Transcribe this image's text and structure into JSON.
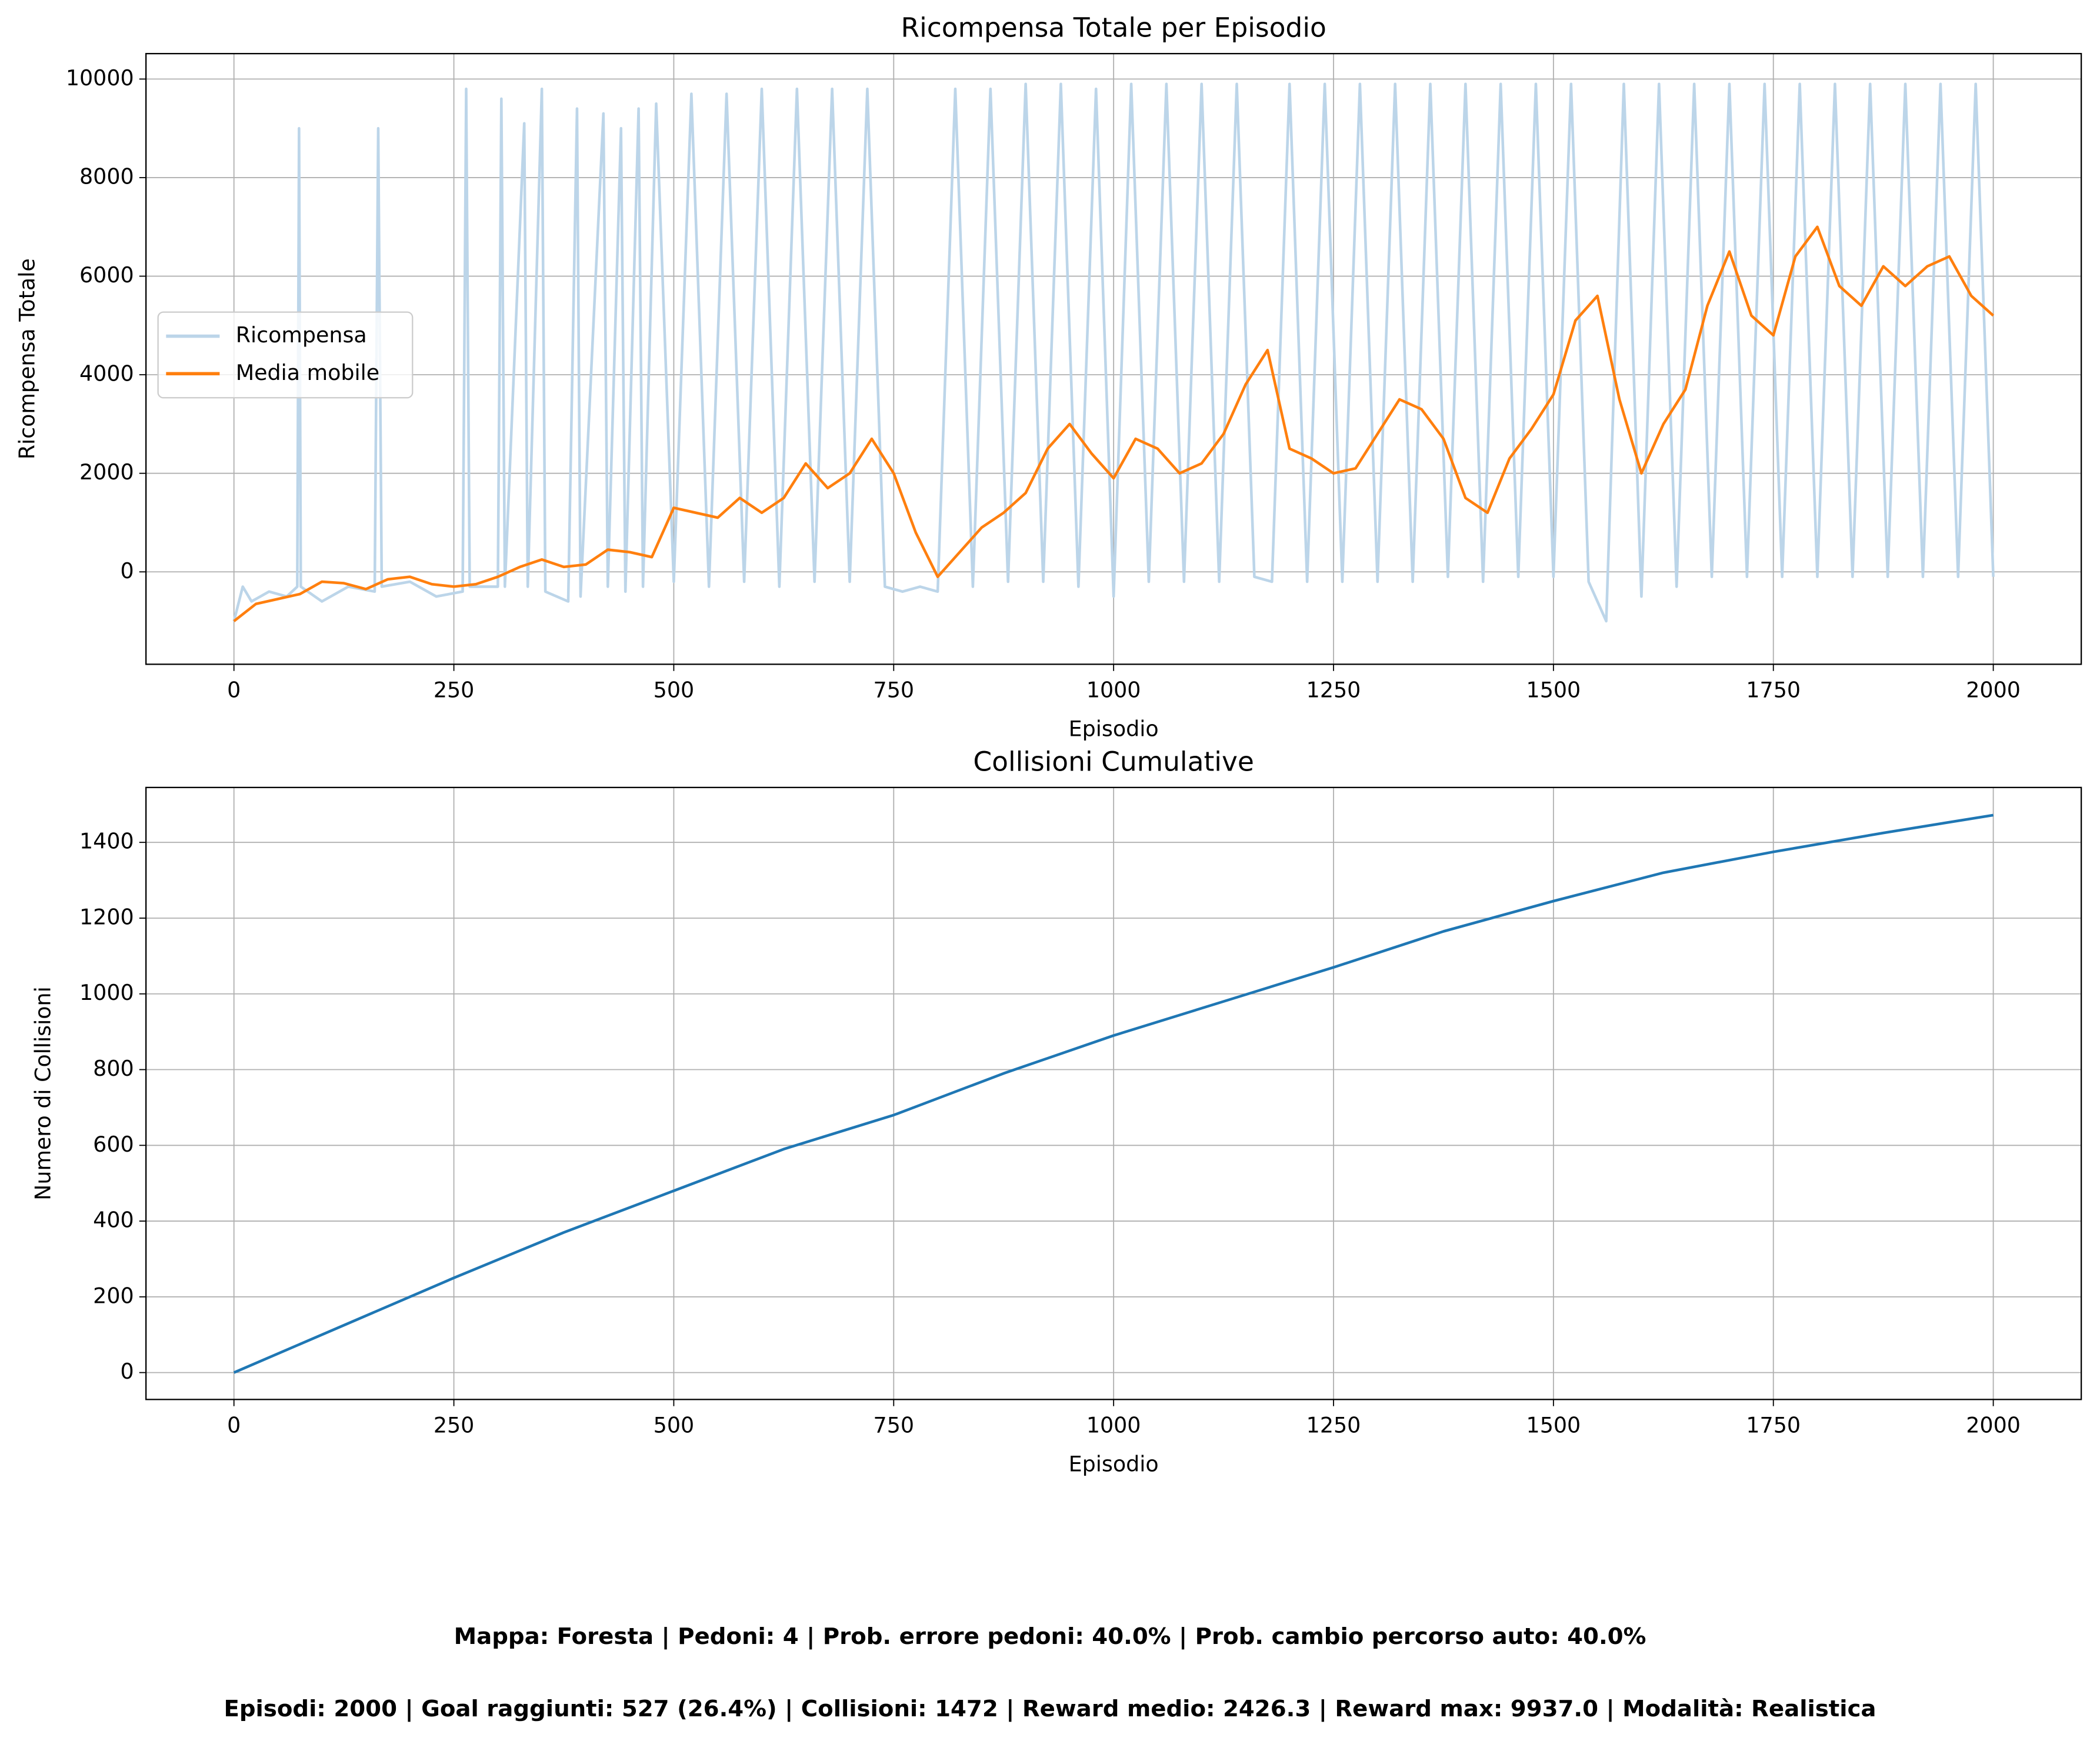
{
  "chart_data": [
    {
      "type": "line",
      "title": "Ricompensa Totale per Episodio",
      "xlabel": "Episodio",
      "ylabel": "Ricompensa Totale",
      "xlim": [
        -100,
        2100
      ],
      "ylim": [
        -1875,
        10516
      ],
      "xticks": [
        0,
        250,
        500,
        750,
        1000,
        1250,
        1500,
        1750,
        2000
      ],
      "yticks": [
        0,
        2000,
        4000,
        6000,
        8000,
        10000
      ],
      "grid": true,
      "legend": "center left",
      "series": [
        {
          "name": "Ricompensa",
          "color": "#bcd5e9",
          "x": [
            0,
            10,
            20,
            40,
            60,
            72,
            74,
            76,
            100,
            130,
            160,
            164,
            168,
            200,
            230,
            260,
            264,
            268,
            300,
            304,
            308,
            330,
            334,
            350,
            354,
            380,
            390,
            394,
            420,
            425,
            440,
            445,
            460,
            465,
            480,
            500,
            520,
            540,
            560,
            580,
            600,
            620,
            640,
            660,
            680,
            700,
            720,
            740,
            760,
            780,
            800,
            820,
            840,
            860,
            880,
            900,
            920,
            940,
            960,
            980,
            1000,
            1020,
            1040,
            1060,
            1080,
            1100,
            1120,
            1140,
            1160,
            1180,
            1200,
            1220,
            1240,
            1260,
            1280,
            1300,
            1320,
            1340,
            1360,
            1380,
            1400,
            1420,
            1440,
            1460,
            1480,
            1500,
            1520,
            1540,
            1560,
            1580,
            1600,
            1620,
            1640,
            1660,
            1680,
            1700,
            1720,
            1740,
            1760,
            1780,
            1800,
            1820,
            1840,
            1860,
            1880,
            1900,
            1920,
            1940,
            1960,
            1980,
            2000
          ],
          "values": [
            -1000,
            -300,
            -600,
            -400,
            -500,
            -300,
            9000,
            -300,
            -600,
            -300,
            -400,
            9000,
            -300,
            -200,
            -500,
            -400,
            9800,
            -300,
            -300,
            9600,
            -300,
            9100,
            -300,
            9800,
            -400,
            -600,
            9400,
            -500,
            9300,
            -300,
            9000,
            -400,
            9400,
            -300,
            9500,
            -200,
            9700,
            -300,
            9700,
            -200,
            9800,
            -300,
            9800,
            -200,
            9800,
            -200,
            9800,
            -300,
            -400,
            -300,
            -400,
            9800,
            -300,
            9800,
            -200,
            9900,
            -200,
            9900,
            -300,
            9800,
            -500,
            9900,
            -200,
            9900,
            -200,
            9900,
            -200,
            9900,
            -100,
            -200,
            9900,
            -200,
            9900,
            -200,
            9900,
            -200,
            9900,
            -200,
            9900,
            -100,
            9900,
            -200,
            9900,
            -100,
            9900,
            -100,
            9900,
            -200,
            -1000,
            9900,
            -500,
            9900,
            -300,
            9900,
            -100,
            9900,
            -100,
            9900,
            -100,
            9900,
            -100,
            9900,
            -100,
            9900,
            -100,
            9900,
            -100,
            9900,
            -100,
            9900,
            -100
          ]
        },
        {
          "name": "Media mobile",
          "color": "#ff7f0e",
          "x": [
            0,
            25,
            50,
            75,
            100,
            125,
            150,
            175,
            200,
            225,
            250,
            275,
            300,
            325,
            350,
            375,
            400,
            425,
            450,
            475,
            500,
            525,
            550,
            575,
            600,
            625,
            650,
            675,
            700,
            725,
            750,
            775,
            800,
            825,
            850,
            875,
            900,
            925,
            950,
            975,
            1000,
            1025,
            1050,
            1075,
            1100,
            1125,
            1150,
            1175,
            1200,
            1225,
            1250,
            1275,
            1300,
            1325,
            1350,
            1375,
            1400,
            1425,
            1450,
            1475,
            1500,
            1525,
            1550,
            1575,
            1600,
            1625,
            1650,
            1675,
            1700,
            1725,
            1750,
            1775,
            1800,
            1825,
            1850,
            1875,
            1900,
            1925,
            1950,
            1975,
            2000
          ],
          "values": [
            -1000,
            -650,
            -550,
            -450,
            -200,
            -230,
            -350,
            -150,
            -100,
            -250,
            -300,
            -250,
            -100,
            100,
            250,
            100,
            150,
            450,
            400,
            300,
            1300,
            1200,
            1100,
            1500,
            1200,
            1500,
            2200,
            1700,
            2000,
            2700,
            2000,
            800,
            -100,
            400,
            900,
            1200,
            1600,
            2500,
            3000,
            2400,
            1900,
            2700,
            2500,
            2000,
            2200,
            2800,
            3800,
            4500,
            2500,
            2300,
            2000,
            2100,
            2800,
            3500,
            3300,
            2700,
            1500,
            1200,
            2300,
            2900,
            3600,
            5100,
            5600,
            3500,
            2000,
            3000,
            3700,
            5400,
            6500,
            5200,
            4800,
            6400,
            7000,
            5800,
            5400,
            6200,
            5800,
            6200,
            6400,
            5600,
            5200
          ]
        }
      ]
    },
    {
      "type": "line",
      "title": "Collisioni Cumulative",
      "xlabel": "Episodio",
      "ylabel": "Numero di Collisioni",
      "xlim": [
        -100,
        2100
      ],
      "ylim": [
        -71,
        1545
      ],
      "xticks": [
        0,
        250,
        500,
        750,
        1000,
        1250,
        1500,
        1750,
        2000
      ],
      "yticks": [
        0,
        200,
        400,
        600,
        800,
        1000,
        1200,
        1400
      ],
      "grid": true,
      "series": [
        {
          "name": null,
          "color": "#1f77b4",
          "x": [
            0,
            125,
            250,
            375,
            500,
            625,
            750,
            875,
            1000,
            1125,
            1250,
            1375,
            1500,
            1625,
            1750,
            1875,
            2000
          ],
          "values": [
            0,
            125,
            250,
            370,
            480,
            590,
            680,
            790,
            890,
            980,
            1070,
            1165,
            1245,
            1320,
            1375,
            1425,
            1472
          ]
        }
      ]
    }
  ],
  "info_lines": [
    "Mappa: Foresta | Pedoni: 4 | Prob. errore pedoni: 40.0% | Prob. cambio percorso auto: 40.0%",
    "Episodi: 2000 | Goal raggiunti: 527 (26.4%) | Collisioni: 1472 | Reward medio: 2426.3 | Reward max: 9937.0 | Modalità: Realistica"
  ]
}
